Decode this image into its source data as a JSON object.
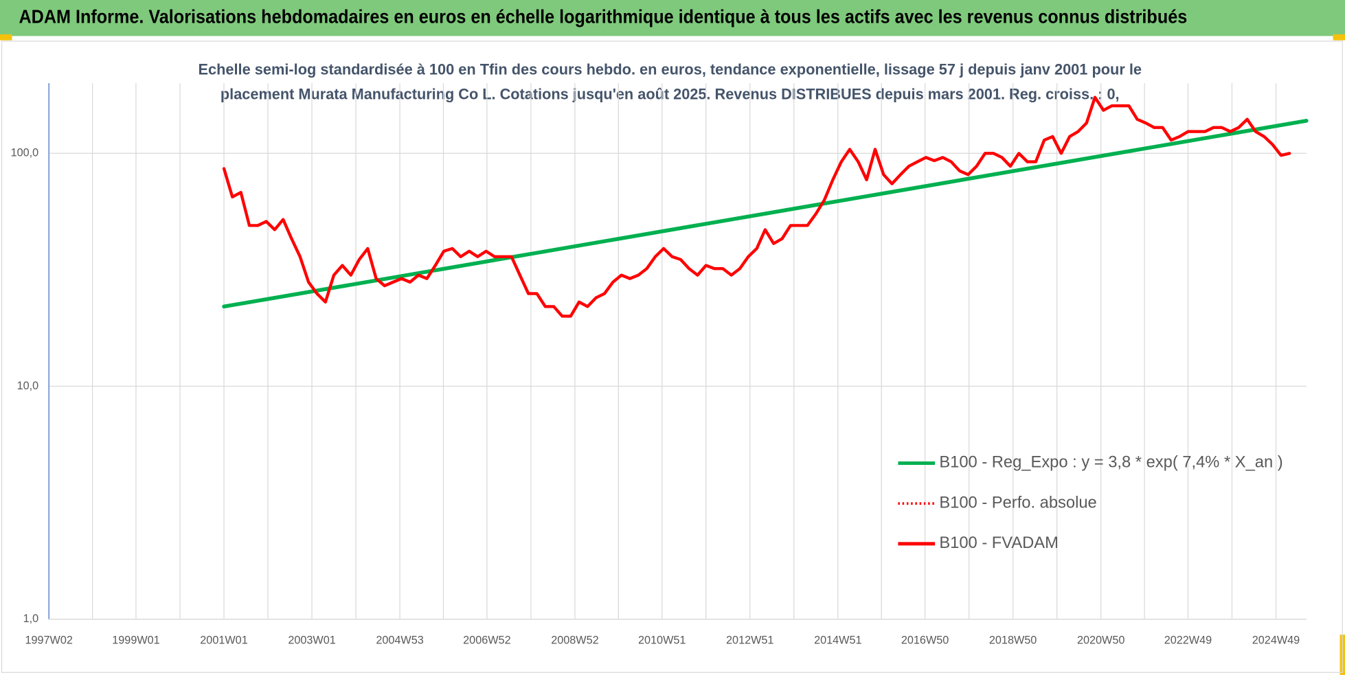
{
  "chart_data": {
    "type": "line",
    "title": "ADAM Informe. Valorisations hebdomadaires en euros en échelle logarithmique identique à tous les actifs avec les revenus connus distribués",
    "subtitle": [
      "Echelle semi-log standardisée à 100 en Tfin des cours hebdo. en euros, tendance exponentielle, lissage 57 j depuis janv 2001 pour le",
      "placement Murata Manufacturing Co L. Cotations jusqu'en août 2025. Revenus DISTRIBUES depuis mars 2001. Reg. croiss. : 0,"
    ],
    "log_scale": true,
    "grid": true,
    "legend_position": "right",
    "xlim": [
      "1997W02",
      "2025W33"
    ],
    "xticks": [
      "1997W02",
      "1999W01",
      "2001W01",
      "2003W01",
      "2004W53",
      "2006W52",
      "2008W52",
      "2010W51",
      "2012W51",
      "2014W51",
      "2016W50",
      "2018W50",
      "2020W50",
      "2022W49",
      "2024W49"
    ],
    "ylim": [
      1,
      200
    ],
    "yticks": [
      {
        "value": 1,
        "label": "1,0"
      },
      {
        "value": 10,
        "label": "10,0"
      },
      {
        "value": 100,
        "label": "100,0"
      }
    ],
    "series": [
      {
        "name": "B100 - Reg_Expo : y = 3,8 * exp( 7,4% *  X_an )",
        "color": "#00b050",
        "style": "solid",
        "x": [
          "2001W01",
          "2025W33"
        ],
        "values": [
          22,
          138
        ]
      },
      {
        "name": "B100 - Perfo. absolue",
        "color": "#ff0000",
        "style": "dotted",
        "x": [],
        "values": []
      },
      {
        "name": "B100 - FVADAM",
        "color": "#ff0000",
        "style": "solid",
        "x": [
          "2001W01",
          "2001W11",
          "2001W21",
          "2001W31",
          "2001W41",
          "2001W51",
          "2002W09",
          "2002W19",
          "2002W29",
          "2002W39",
          "2002W49",
          "2003W07",
          "2003W17",
          "2003W27",
          "2003W37",
          "2003W47",
          "2004W05",
          "2004W15",
          "2004W25",
          "2004W35",
          "2004W45",
          "2005W03",
          "2005W13",
          "2005W23",
          "2005W33",
          "2005W43",
          "2006W01",
          "2006W11",
          "2006W21",
          "2006W31",
          "2006W41",
          "2006W51",
          "2007W09",
          "2007W19",
          "2007W29",
          "2007W39",
          "2007W49",
          "2008W07",
          "2008W17",
          "2008W27",
          "2008W37",
          "2008W47",
          "2009W05",
          "2009W15",
          "2009W25",
          "2009W35",
          "2009W45",
          "2010W03",
          "2010W13",
          "2010W23",
          "2010W33",
          "2010W43",
          "2011W01",
          "2011W11",
          "2011W21",
          "2011W31",
          "2011W41",
          "2011W51",
          "2012W09",
          "2012W19",
          "2012W29",
          "2012W39",
          "2012W49",
          "2013W07",
          "2013W17",
          "2013W27",
          "2013W37",
          "2013W47",
          "2014W05",
          "2014W15",
          "2014W25",
          "2014W35",
          "2014W45",
          "2015W03",
          "2015W13",
          "2015W23",
          "2015W33",
          "2015W43",
          "2016W01",
          "2016W11",
          "2016W21",
          "2016W31",
          "2016W41",
          "2016W51",
          "2017W09",
          "2017W19",
          "2017W29",
          "2017W39",
          "2017W49",
          "2018W07",
          "2018W17",
          "2018W27",
          "2018W37",
          "2018W47",
          "2019W05",
          "2019W15",
          "2019W25",
          "2019W35",
          "2019W45",
          "2020W03",
          "2020W13",
          "2020W23",
          "2020W33",
          "2020W43",
          "2021W01",
          "2021W11",
          "2021W21",
          "2021W31",
          "2021W41",
          "2021W51",
          "2022W09",
          "2022W19",
          "2022W29",
          "2022W39",
          "2022W49",
          "2023W07",
          "2023W17",
          "2023W27",
          "2023W37",
          "2023W47",
          "2024W05",
          "2024W15",
          "2024W25",
          "2024W35",
          "2024W45",
          "2025W03",
          "2025W13"
        ],
        "values": [
          86,
          65,
          68,
          49,
          49,
          51,
          47,
          52,
          43,
          36,
          28,
          25,
          23,
          30,
          33,
          30,
          35,
          39,
          29,
          27,
          28,
          29,
          28,
          30,
          29,
          33,
          38,
          39,
          36,
          38,
          36,
          38,
          36,
          36,
          36,
          30,
          25,
          25,
          22,
          22,
          20,
          20,
          23,
          22,
          24,
          25,
          28,
          30,
          29,
          30,
          32,
          36,
          39,
          36,
          35,
          32,
          30,
          33,
          32,
          32,
          30,
          32,
          36,
          39,
          47,
          41,
          43,
          49,
          49,
          49,
          55,
          63,
          77,
          92,
          104,
          92,
          77,
          104,
          81,
          74,
          81,
          88,
          92,
          96,
          93,
          96,
          92,
          84,
          81,
          88,
          100,
          100,
          96,
          88,
          100,
          92,
          92,
          114,
          118,
          100,
          118,
          124,
          135,
          174,
          153,
          160,
          160,
          160,
          140,
          135,
          129,
          129,
          114,
          118,
          124,
          124,
          124,
          129,
          129,
          124,
          129,
          140,
          124,
          118,
          109,
          98,
          100
        ]
      }
    ]
  }
}
